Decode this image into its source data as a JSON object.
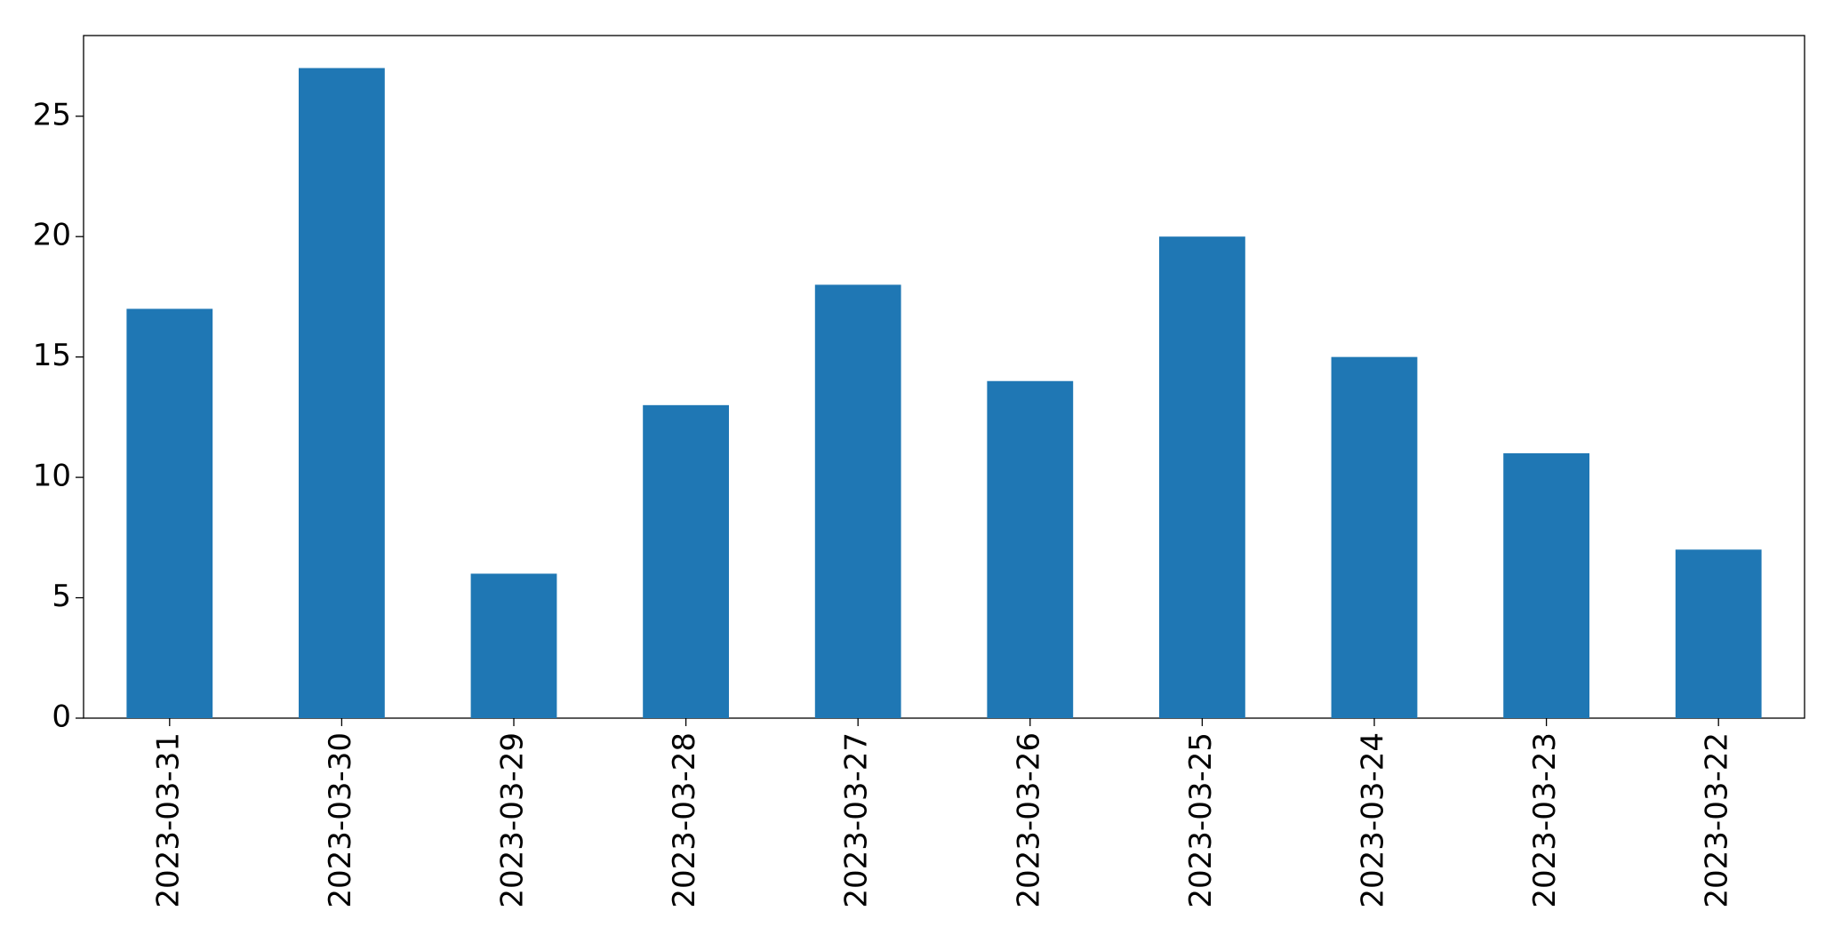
{
  "chart_data": {
    "type": "bar",
    "categories": [
      "2023-03-31",
      "2023-03-30",
      "2023-03-29",
      "2023-03-28",
      "2023-03-27",
      "2023-03-26",
      "2023-03-25",
      "2023-03-24",
      "2023-03-23",
      "2023-03-22"
    ],
    "values": [
      17,
      27,
      6,
      13,
      18,
      14,
      20,
      15,
      11,
      7
    ],
    "color": "#1f77b4",
    "ylim": [
      0,
      28.35
    ],
    "yticks": [
      0,
      5,
      10,
      15,
      20,
      25
    ],
    "grid": false
  }
}
